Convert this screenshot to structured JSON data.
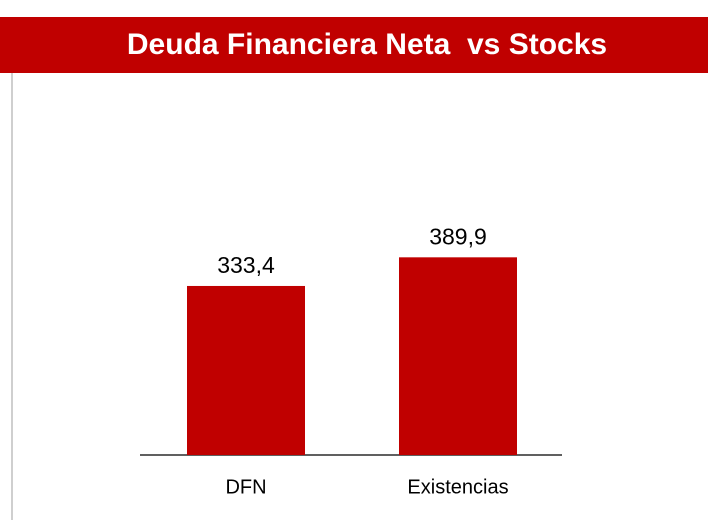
{
  "chart_data": {
    "type": "bar",
    "title": "Deuda Financiera Neta  vs Stocks",
    "categories": [
      "DFN",
      "Existencias"
    ],
    "values": [
      333.4,
      389.9
    ],
    "value_labels": [
      "333,4",
      "389,9"
    ],
    "color": "#c00000"
  }
}
